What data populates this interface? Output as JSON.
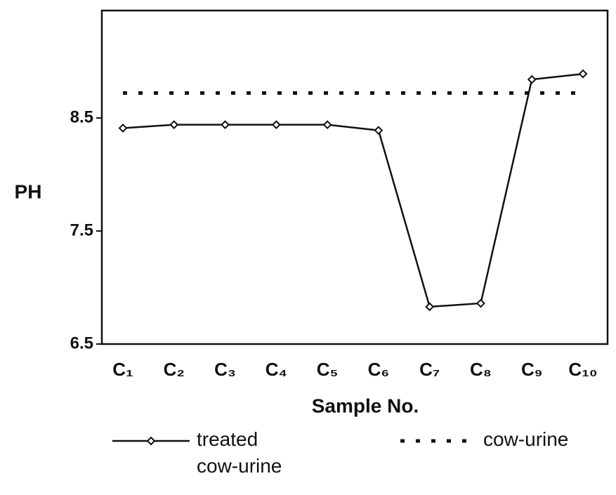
{
  "chart_data": {
    "type": "line",
    "x_label": "Sample No.",
    "y_label": "PH",
    "categories": [
      "C₁",
      "C₂",
      "C₃",
      "C₄",
      "C₅",
      "C₆",
      "C₇",
      "C₈",
      "C₉",
      "C₁₀"
    ],
    "series": [
      {
        "name": "treated cow-urine",
        "color": "#111111",
        "style": "solid",
        "marker": "diamond",
        "values": [
          8.41,
          8.44,
          8.44,
          8.44,
          8.44,
          8.39,
          6.83,
          6.86,
          8.84,
          8.89
        ]
      },
      {
        "name": "cow-urine",
        "color": "#111111",
        "style": "dashed",
        "marker": "none",
        "values": [
          8.72,
          8.72,
          8.72,
          8.72,
          8.72,
          8.72,
          8.72,
          8.72,
          8.72,
          8.72
        ]
      }
    ],
    "ylim": [
      6.5,
      9.45
    ],
    "yticks": [
      6.5,
      7.5,
      8.5
    ],
    "grid": false,
    "legend": "bottom"
  }
}
